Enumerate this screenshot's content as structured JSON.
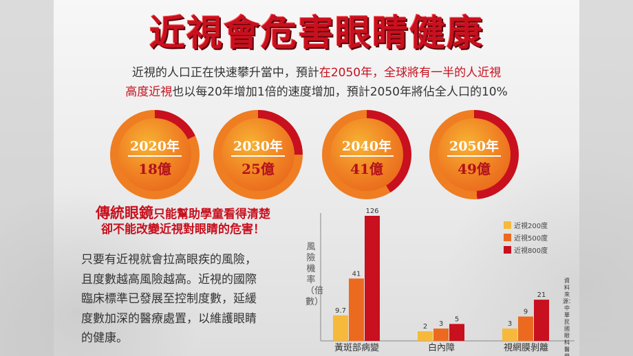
{
  "title": "近視會危害眼睛健康",
  "intro": {
    "line1_a": "近視的人口正在快速攀升當中，預計",
    "line1_hl": "在2050年，全球將有一半的人近視",
    "line2_hl": "高度近視",
    "line2_b": "也以每20年增加1倍的速度增加，預計2050年將佔全人口的10%"
  },
  "stats": [
    {
      "year": "2020年",
      "value": "18億",
      "fraction": 0.18
    },
    {
      "year": "2030年",
      "value": "25億",
      "fraction": 0.25
    },
    {
      "year": "2040年",
      "value": "41億",
      "fraction": 0.41
    },
    {
      "year": "2050年",
      "value": "49億",
      "fraction": 0.49
    }
  ],
  "colors": {
    "ring_red": "#c8101e",
    "ring_orange": "#ef7d22",
    "inner_orange": "#f49b2a",
    "bar_200": "#f6b93b",
    "bar_500": "#ec6a1f",
    "bar_800": "#c8101e"
  },
  "subheading": {
    "big": "傳統眼鏡",
    "rest": "只能幫助學童看得清楚",
    "line2": "卻不能改變近視對眼睛的危害！"
  },
  "body": {
    "lines": [
      "只要有近視就會拉高眼疾的風險，",
      "且度數越高風險越高。近視的國際",
      "臨床標準已發展至控制度數，延緩",
      "度數加深的醫療處置，以維護眼睛",
      "的健康。"
    ]
  },
  "source": "資料來源：中華民國眼科醫學會",
  "chart_data": {
    "type": "bar",
    "ylabel": "風險機率（倍數）",
    "categories": [
      "黃斑部病變",
      "白內障",
      "視網膜剝離"
    ],
    "series": [
      {
        "name": "近視200度",
        "values": [
          9.7,
          2,
          3
        ]
      },
      {
        "name": "近視500度",
        "values": [
          41,
          3,
          9
        ]
      },
      {
        "name": "近視800度",
        "values": [
          126,
          5,
          21
        ]
      }
    ],
    "value_labels": [
      [
        "9.7",
        "41",
        "126"
      ],
      [
        "2",
        "3",
        "5"
      ],
      [
        "3",
        "9",
        "21"
      ]
    ],
    "ylim": [
      0,
      126
    ],
    "scale_note": "非線性",
    "legend_position": "top-right",
    "grid": false
  }
}
